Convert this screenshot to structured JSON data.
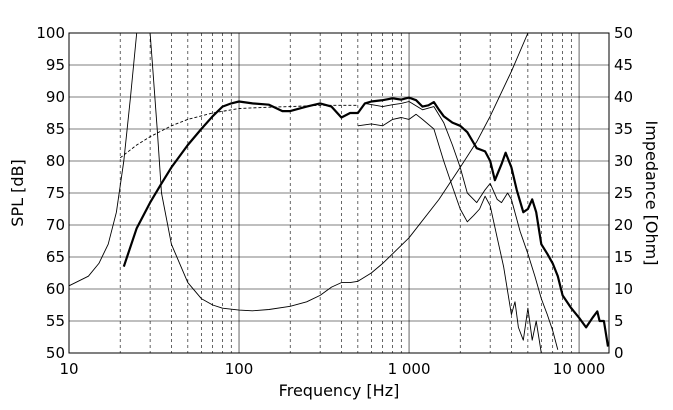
{
  "chart_data": {
    "type": "line",
    "xlabel": "Frequency [Hz]",
    "ylabel": "SPL [dB]",
    "y2label": "Impedance [Ohm]",
    "x_scale": "log",
    "xlim": [
      10,
      15000
    ],
    "ylim": [
      50,
      100
    ],
    "y2lim": [
      0,
      50
    ],
    "grid": true,
    "x_ticks": [
      {
        "value": 10,
        "label": "10"
      },
      {
        "value": 100,
        "label": "100"
      },
      {
        "value": 1000,
        "label": "1 000"
      },
      {
        "value": 10000,
        "label": "10 000"
      }
    ],
    "y_ticks": [
      {
        "value": 100,
        "label": "100"
      },
      {
        "value": 95,
        "label": "95"
      },
      {
        "value": 90,
        "label": "90"
      },
      {
        "value": 85,
        "label": "85"
      },
      {
        "value": 80,
        "label": "80"
      },
      {
        "value": 75,
        "label": "75"
      },
      {
        "value": 70,
        "label": "70"
      },
      {
        "value": 65,
        "label": "65"
      },
      {
        "value": 60,
        "label": "60"
      },
      {
        "value": 55,
        "label": "55"
      },
      {
        "value": 50,
        "label": "50"
      }
    ],
    "y2_ticks": [
      {
        "value": 50,
        "label": "50"
      },
      {
        "value": 45,
        "label": "45"
      },
      {
        "value": 40,
        "label": "40"
      },
      {
        "value": 35,
        "label": "35"
      },
      {
        "value": 30,
        "label": "30"
      },
      {
        "value": 25,
        "label": "25"
      },
      {
        "value": 20,
        "label": "20"
      },
      {
        "value": 15,
        "label": "15"
      },
      {
        "value": 10,
        "label": "10"
      },
      {
        "value": 5,
        "label": "5"
      },
      {
        "value": 0,
        "label": "0"
      }
    ],
    "series": [
      {
        "key": "spl-on-axis",
        "axis": "left",
        "style": "thick",
        "points": [
          [
            21,
            63.5
          ],
          [
            25,
            69.5
          ],
          [
            30,
            73.5
          ],
          [
            35,
            76.5
          ],
          [
            40,
            79
          ],
          [
            50,
            82.5
          ],
          [
            60,
            85
          ],
          [
            70,
            87
          ],
          [
            80,
            88.5
          ],
          [
            90,
            89
          ],
          [
            100,
            89.3
          ],
          [
            120,
            89
          ],
          [
            150,
            88.8
          ],
          [
            180,
            87.8
          ],
          [
            200,
            87.8
          ],
          [
            250,
            88.5
          ],
          [
            300,
            89
          ],
          [
            350,
            88.5
          ],
          [
            400,
            86.8
          ],
          [
            450,
            87.5
          ],
          [
            500,
            87.5
          ],
          [
            550,
            89
          ],
          [
            600,
            89.3
          ],
          [
            700,
            89.5
          ],
          [
            800,
            89.8
          ],
          [
            900,
            89.6
          ],
          [
            1000,
            89.9
          ],
          [
            1100,
            89.5
          ],
          [
            1200,
            88.5
          ],
          [
            1300,
            88.7
          ],
          [
            1400,
            89.2
          ],
          [
            1500,
            88
          ],
          [
            1600,
            87
          ],
          [
            1800,
            86
          ],
          [
            2000,
            85.5
          ],
          [
            2200,
            84.5
          ],
          [
            2500,
            82
          ],
          [
            2800,
            81.5
          ],
          [
            3000,
            80
          ],
          [
            3200,
            77
          ],
          [
            3500,
            79.5
          ],
          [
            3700,
            81.3
          ],
          [
            4000,
            79
          ],
          [
            4300,
            75.5
          ],
          [
            4700,
            72
          ],
          [
            5000,
            72.5
          ],
          [
            5300,
            74
          ],
          [
            5600,
            72
          ],
          [
            6000,
            67
          ],
          [
            6500,
            65.5
          ],
          [
            7000,
            64
          ],
          [
            7500,
            62
          ],
          [
            8000,
            59
          ],
          [
            9000,
            57
          ],
          [
            10000,
            55.5
          ],
          [
            11000,
            54
          ],
          [
            12000,
            55.5
          ],
          [
            12800,
            56.5
          ],
          [
            13200,
            55
          ],
          [
            14000,
            55
          ],
          [
            14800,
            51
          ]
        ]
      },
      {
        "key": "spl-off-axis-30",
        "axis": "left",
        "style": "thin",
        "points": [
          [
            550,
            89
          ],
          [
            700,
            88.5
          ],
          [
            800,
            88.8
          ],
          [
            900,
            89
          ],
          [
            1000,
            89.3
          ],
          [
            1200,
            88
          ],
          [
            1400,
            88.5
          ],
          [
            1600,
            86
          ],
          [
            1800,
            82.5
          ],
          [
            2000,
            79
          ],
          [
            2200,
            75
          ],
          [
            2500,
            73.5
          ],
          [
            2800,
            75.5
          ],
          [
            3000,
            76.5
          ],
          [
            3300,
            74
          ],
          [
            3500,
            73.5
          ],
          [
            3800,
            75
          ],
          [
            4000,
            74
          ],
          [
            4500,
            69
          ],
          [
            5000,
            65.5
          ],
          [
            5500,
            62
          ],
          [
            6000,
            58.5
          ],
          [
            6500,
            56
          ],
          [
            7000,
            53.5
          ],
          [
            7500,
            50.5
          ]
        ]
      },
      {
        "key": "spl-off-axis-60",
        "axis": "left",
        "style": "thin",
        "points": [
          [
            500,
            85.5
          ],
          [
            600,
            85.8
          ],
          [
            700,
            85.5
          ],
          [
            800,
            86.5
          ],
          [
            900,
            86.8
          ],
          [
            1000,
            86.5
          ],
          [
            1100,
            87.3
          ],
          [
            1200,
            86.5
          ],
          [
            1400,
            85
          ],
          [
            1600,
            80
          ],
          [
            1800,
            76
          ],
          [
            2000,
            72.5
          ],
          [
            2200,
            70.5
          ],
          [
            2400,
            71.5
          ],
          [
            2600,
            72.5
          ],
          [
            2800,
            74.5
          ],
          [
            3000,
            73
          ],
          [
            3300,
            68
          ],
          [
            3600,
            63.5
          ],
          [
            4000,
            56
          ],
          [
            4200,
            58
          ],
          [
            4400,
            54
          ],
          [
            4700,
            52
          ],
          [
            5000,
            57
          ],
          [
            5300,
            52
          ],
          [
            5600,
            55
          ],
          [
            6000,
            50
          ]
        ]
      },
      {
        "key": "spl-reference",
        "axis": "left",
        "style": "dashed",
        "points": [
          [
            20,
            80.5
          ],
          [
            25,
            82.5
          ],
          [
            30,
            83.8
          ],
          [
            40,
            85.5
          ],
          [
            50,
            86.5
          ],
          [
            70,
            87.5
          ],
          [
            100,
            88.2
          ],
          [
            150,
            88.4
          ],
          [
            200,
            88.5
          ],
          [
            300,
            88.7
          ],
          [
            400,
            88.7
          ],
          [
            500,
            88.7
          ]
        ]
      },
      {
        "key": "impedance",
        "axis": "right",
        "style": "thin",
        "points": [
          [
            10,
            10.5
          ],
          [
            13,
            12
          ],
          [
            15,
            14
          ],
          [
            17,
            17
          ],
          [
            19,
            22
          ],
          [
            21,
            30
          ],
          [
            23,
            40
          ],
          [
            25,
            50
          ],
          [
            30,
            50
          ],
          [
            31,
            45
          ],
          [
            33,
            35
          ],
          [
            35,
            25
          ],
          [
            40,
            17
          ],
          [
            50,
            11
          ],
          [
            60,
            8.5
          ],
          [
            70,
            7.5
          ],
          [
            80,
            7
          ],
          [
            100,
            6.7
          ],
          [
            120,
            6.6
          ],
          [
            150,
            6.8
          ],
          [
            200,
            7.3
          ],
          [
            250,
            8
          ],
          [
            300,
            9
          ],
          [
            350,
            10.3
          ],
          [
            400,
            11
          ],
          [
            450,
            11
          ],
          [
            500,
            11.2
          ],
          [
            600,
            12.5
          ],
          [
            700,
            14
          ],
          [
            800,
            15.5
          ],
          [
            1000,
            18
          ],
          [
            1500,
            24
          ],
          [
            2000,
            29
          ],
          [
            2500,
            33
          ],
          [
            3000,
            37
          ],
          [
            4000,
            44
          ],
          [
            5000,
            50
          ]
        ]
      }
    ]
  }
}
